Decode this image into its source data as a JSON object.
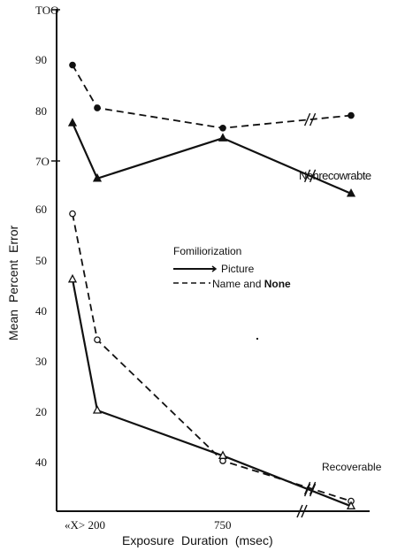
{
  "chart_data": {
    "type": "line",
    "xlabel": "Exposure Duration (msec)",
    "ylabel": "Mean Percent Error",
    "categories": [
      "«X>",
      "200",
      "750",
      ""
    ],
    "x_tick_labels": [
      "«X> 200",
      "750"
    ],
    "y_tick_labels": [
      "TOO",
      "90",
      "80",
      "7O",
      "60",
      "50",
      "40",
      "30",
      "20",
      "40"
    ],
    "ylim": [
      0,
      100
    ],
    "legend": {
      "title": "Fomiliorization",
      "entries": [
        {
          "label_plain": "Name and ",
          "label_bold": "None",
          "style": "dashed"
        },
        {
          "label": "Picture",
          "style": "solid"
        }
      ],
      "placement": "middle"
    },
    "annotations": [
      "Nonrecowrabte",
      "Recoverable"
    ],
    "series": [
      {
        "group": "Nonrecowrabte",
        "style": "dashed",
        "marker": "filled-circle",
        "values": [
          88.5,
          80,
          76,
          78.5
        ]
      },
      {
        "group": "Nonrecowrabte",
        "style": "solid",
        "marker": "filled-triangle",
        "values": [
          77,
          66,
          74,
          63
        ]
      },
      {
        "group": "Recoverable",
        "style": "dashed",
        "marker": "open-circle",
        "values": [
          59,
          34,
          10,
          2
        ]
      },
      {
        "group": "Recoverable",
        "style": "solid",
        "marker": "open-triangle",
        "values": [
          46,
          20,
          11,
          1
        ]
      }
    ],
    "grid": false
  }
}
